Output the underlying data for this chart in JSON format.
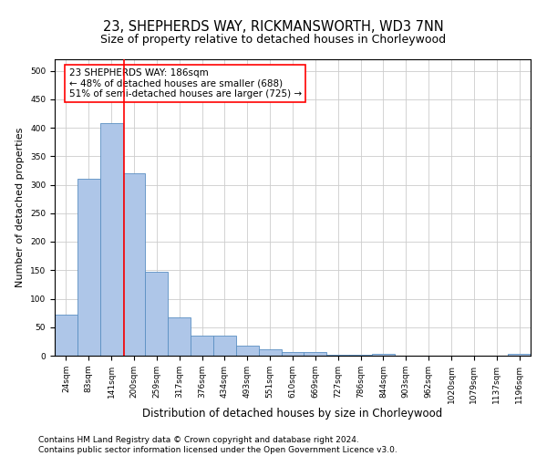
{
  "title": "23, SHEPHERDS WAY, RICKMANSWORTH, WD3 7NN",
  "subtitle": "Size of property relative to detached houses in Chorleywood",
  "xlabel": "Distribution of detached houses by size in Chorleywood",
  "ylabel": "Number of detached properties",
  "footer1": "Contains HM Land Registry data © Crown copyright and database right 2024.",
  "footer2": "Contains public sector information licensed under the Open Government Licence v3.0.",
  "bar_labels": [
    "24sqm",
    "83sqm",
    "141sqm",
    "200sqm",
    "259sqm",
    "317sqm",
    "376sqm",
    "434sqm",
    "493sqm",
    "551sqm",
    "610sqm",
    "669sqm",
    "727sqm",
    "786sqm",
    "844sqm",
    "903sqm",
    "962sqm",
    "1020sqm",
    "1079sqm",
    "1137sqm",
    "1196sqm"
  ],
  "bar_values": [
    72,
    310,
    408,
    320,
    147,
    68,
    36,
    36,
    18,
    11,
    6,
    6,
    1,
    1,
    3,
    0,
    0,
    0,
    0,
    0,
    4
  ],
  "bar_color": "#aec6e8",
  "bar_edge_color": "#5a8fc2",
  "property_label": "23 SHEPHERDS WAY: 186sqm",
  "pct_smaller": 48,
  "n_smaller": 688,
  "pct_larger_semi": 51,
  "n_larger_semi": 725,
  "vline_x_index": 2.55,
  "ylim": [
    0,
    520
  ],
  "yticks": [
    0,
    50,
    100,
    150,
    200,
    250,
    300,
    350,
    400,
    450,
    500
  ],
  "grid_color": "#cccccc",
  "vline_color": "red",
  "title_fontsize": 10.5,
  "subtitle_fontsize": 9,
  "xlabel_fontsize": 8.5,
  "ylabel_fontsize": 8,
  "footer_fontsize": 6.5,
  "tick_fontsize": 6.5,
  "annot_fontsize": 7.5
}
